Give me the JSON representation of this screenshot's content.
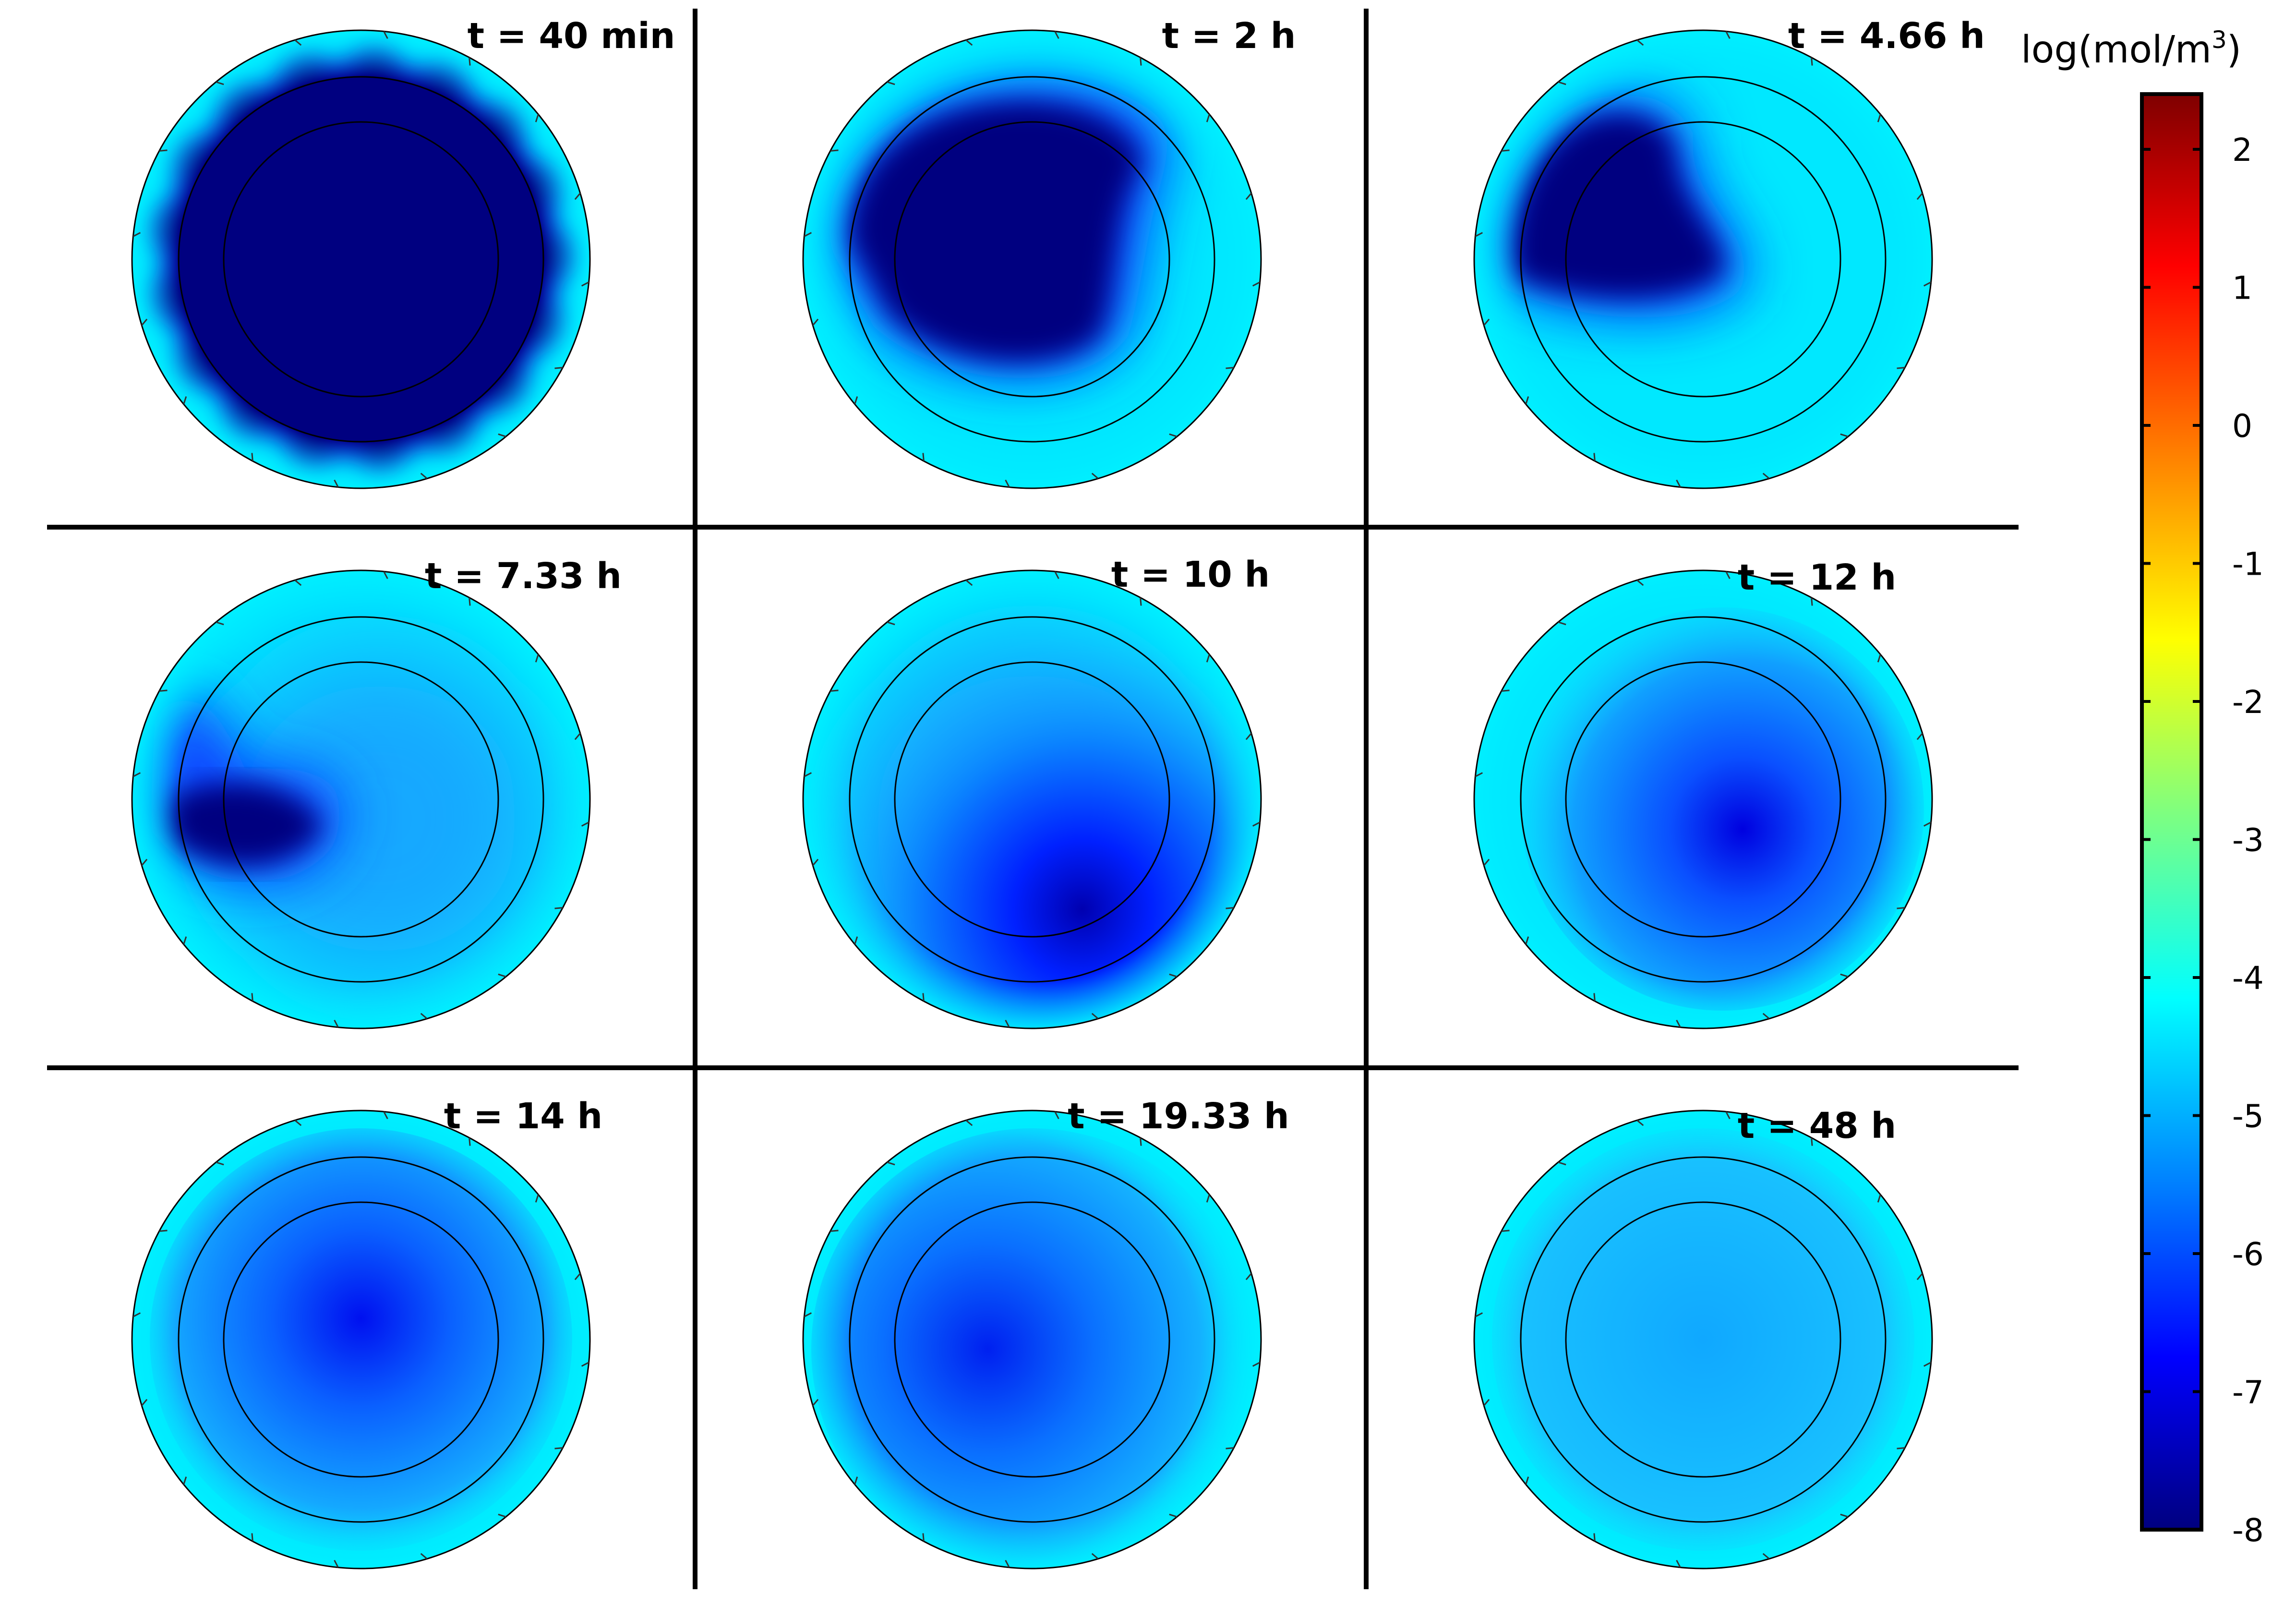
{
  "panels": [
    {
      "label": "t = 40 min",
      "spot": {
        "cx": 0.0,
        "cy": 0.0
      },
      "stage": 0
    },
    {
      "label": "t = 2 h",
      "stage": 1
    },
    {
      "label": "t = 4.66 h",
      "stage": 2
    },
    {
      "label": "t = 7.33 h",
      "stage": 3
    },
    {
      "label": "t = 10 h",
      "stage": 4
    },
    {
      "label": "t = 12 h",
      "stage": 5
    },
    {
      "label": "t = 14 h",
      "stage": 6
    },
    {
      "label": "t = 19.33 h",
      "stage": 7
    },
    {
      "label": "t = 48 h",
      "stage": 8
    }
  ],
  "colorbar": {
    "unit_prefix": "log(mol/m",
    "unit_sup": "3",
    "unit_suffix": ")",
    "min": -8,
    "max": 2.4,
    "ticks": [
      "2",
      "1",
      "0",
      "-1",
      "-2",
      "-3",
      "-4",
      "-5",
      "-6",
      "-7",
      "-8"
    ],
    "colormap": [
      "#00007f",
      "#0000ff",
      "#007fff",
      "#00ffff",
      "#7fff7f",
      "#ffff00",
      "#ff7f00",
      "#ff0000",
      "#7f0000"
    ]
  },
  "colors": {
    "background_level": "#00e8ff",
    "deep": "#000080",
    "mid_blue": "#0a50ff",
    "light_blue": "#1aa8ff"
  }
}
